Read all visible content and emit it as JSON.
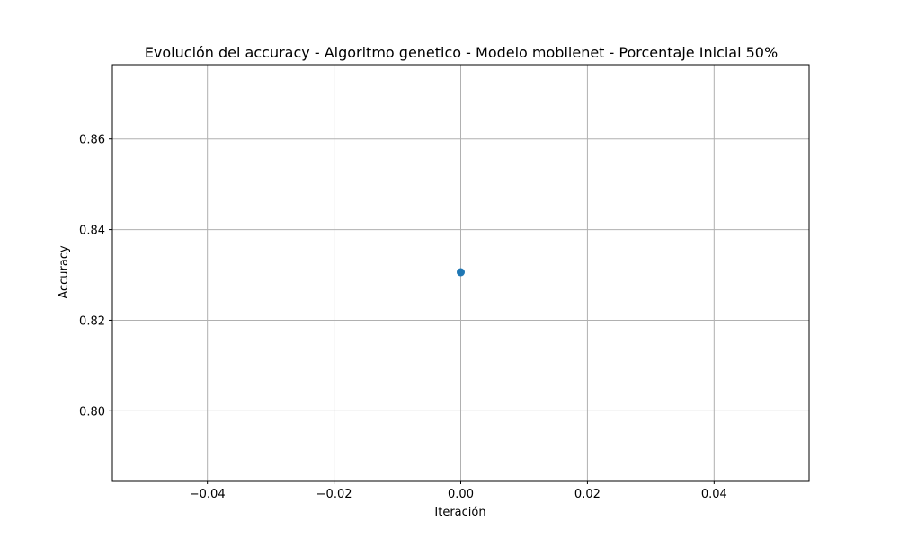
{
  "chart_data": {
    "type": "scatter",
    "title": "Evolución del accuracy - Algoritmo genetico - Modelo mobilenet - Porcentaje Inicial 50%",
    "xlabel": "Iteración",
    "ylabel": "Accuracy",
    "xlim": [
      -0.055,
      0.055
    ],
    "ylim": [
      0.7846,
      0.8764
    ],
    "xticks": [
      -0.04,
      -0.02,
      0.0,
      0.02,
      0.04
    ],
    "xtick_labels": [
      "−0.04",
      "−0.02",
      "0.00",
      "0.02",
      "0.04"
    ],
    "yticks": [
      0.8,
      0.82,
      0.84,
      0.86
    ],
    "ytick_labels": [
      "0.80",
      "0.82",
      "0.84",
      "0.86"
    ],
    "grid": true,
    "series": [
      {
        "x": [
          0
        ],
        "y": [
          0.8306
        ],
        "color": "#1f77b4",
        "marker": "circle"
      }
    ]
  }
}
